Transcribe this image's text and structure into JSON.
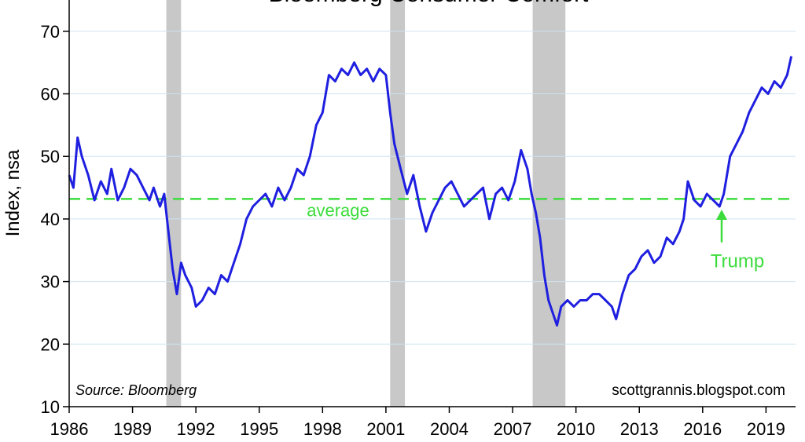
{
  "chart_data": {
    "type": "line",
    "title": "Bloomberg Consumer Comfort",
    "ylabel": "Index, nsa",
    "xlabel": "",
    "xlim": [
      1986,
      2020.4
    ],
    "ylim": [
      10,
      75
    ],
    "yticks": [
      10,
      20,
      30,
      40,
      50,
      60,
      70
    ],
    "xticks": [
      1986,
      1989,
      1992,
      1995,
      1998,
      2001,
      2004,
      2007,
      2010,
      2013,
      2016,
      2019
    ],
    "grid": "horizontal",
    "recessions": [
      [
        1990.6,
        1991.3
      ],
      [
        2001.2,
        2001.9
      ],
      [
        2007.95,
        2009.5
      ]
    ],
    "average": 43.2,
    "average_label": "average",
    "annotations": [
      {
        "text": "Trump",
        "x": 2016.9,
        "y": 33,
        "arrow_to": [
          2016.9,
          41.5
        ]
      }
    ],
    "source": "Source: Bloomberg",
    "credit": "scottgrannis.blogspot.com",
    "colors": {
      "series": "#1f1fe0",
      "average": "#3ddc3d",
      "annotation": "#3ddc3d",
      "recession": "#c8c8c8",
      "grid": "#cfe3f0"
    },
    "series": [
      {
        "x": [
          1986.0,
          1986.2,
          1986.4,
          1986.6,
          1986.9,
          1987.2,
          1987.5,
          1987.8,
          1988.0,
          1988.3,
          1988.6,
          1988.9,
          1989.2,
          1989.5,
          1989.8,
          1990.0,
          1990.3,
          1990.5,
          1990.7,
          1990.9,
          1991.1,
          1991.3,
          1991.5,
          1991.8,
          1992.0,
          1992.3,
          1992.6,
          1992.9,
          1993.2,
          1993.5,
          1993.8,
          1994.1,
          1994.4,
          1994.7,
          1995.0,
          1995.3,
          1995.6,
          1995.9,
          1996.2,
          1996.5,
          1996.8,
          1997.1,
          1997.4,
          1997.7,
          1998.0,
          1998.3,
          1998.6,
          1998.9,
          1999.2,
          1999.5,
          1999.8,
          2000.1,
          2000.4,
          2000.7,
          2001.0,
          2001.2,
          2001.4,
          2001.7,
          2002.0,
          2002.3,
          2002.6,
          2002.9,
          2003.2,
          2003.5,
          2003.8,
          2004.1,
          2004.4,
          2004.7,
          2005.0,
          2005.3,
          2005.6,
          2005.9,
          2006.2,
          2006.5,
          2006.8,
          2007.1,
          2007.4,
          2007.7,
          2007.9,
          2008.1,
          2008.3,
          2008.5,
          2008.7,
          2008.9,
          2009.1,
          2009.3,
          2009.6,
          2009.9,
          2010.2,
          2010.5,
          2010.8,
          2011.1,
          2011.4,
          2011.7,
          2011.9,
          2012.2,
          2012.5,
          2012.8,
          2013.1,
          2013.4,
          2013.7,
          2014.0,
          2014.3,
          2014.6,
          2014.9,
          2015.1,
          2015.3,
          2015.6,
          2015.9,
          2016.2,
          2016.5,
          2016.8,
          2017.0,
          2017.3,
          2017.6,
          2017.9,
          2018.2,
          2018.5,
          2018.8,
          2019.1,
          2019.4,
          2019.7,
          2020.0,
          2020.2
        ],
        "values": [
          47,
          45,
          53,
          50,
          47,
          43,
          46,
          44,
          48,
          43,
          45,
          48,
          47,
          45,
          43,
          45,
          42,
          44,
          38,
          32,
          28,
          33,
          31,
          29,
          26,
          27,
          29,
          28,
          31,
          30,
          33,
          36,
          40,
          42,
          43,
          44,
          42,
          45,
          43,
          45,
          48,
          47,
          50,
          55,
          57,
          63,
          62,
          64,
          63,
          65,
          63,
          64,
          62,
          64,
          63,
          57,
          52,
          48,
          44,
          47,
          42,
          38,
          41,
          43,
          45,
          46,
          44,
          42,
          43,
          44,
          45,
          40,
          44,
          45,
          43,
          46,
          51,
          48,
          44,
          41,
          37,
          31,
          27,
          25,
          23,
          26,
          27,
          26,
          27,
          27,
          28,
          28,
          27,
          26,
          24,
          28,
          31,
          32,
          34,
          35,
          33,
          34,
          37,
          36,
          38,
          40,
          46,
          43,
          42,
          44,
          43,
          42,
          44,
          50,
          52,
          54,
          57,
          59,
          61,
          60,
          62,
          61,
          63,
          66
        ]
      }
    ]
  }
}
